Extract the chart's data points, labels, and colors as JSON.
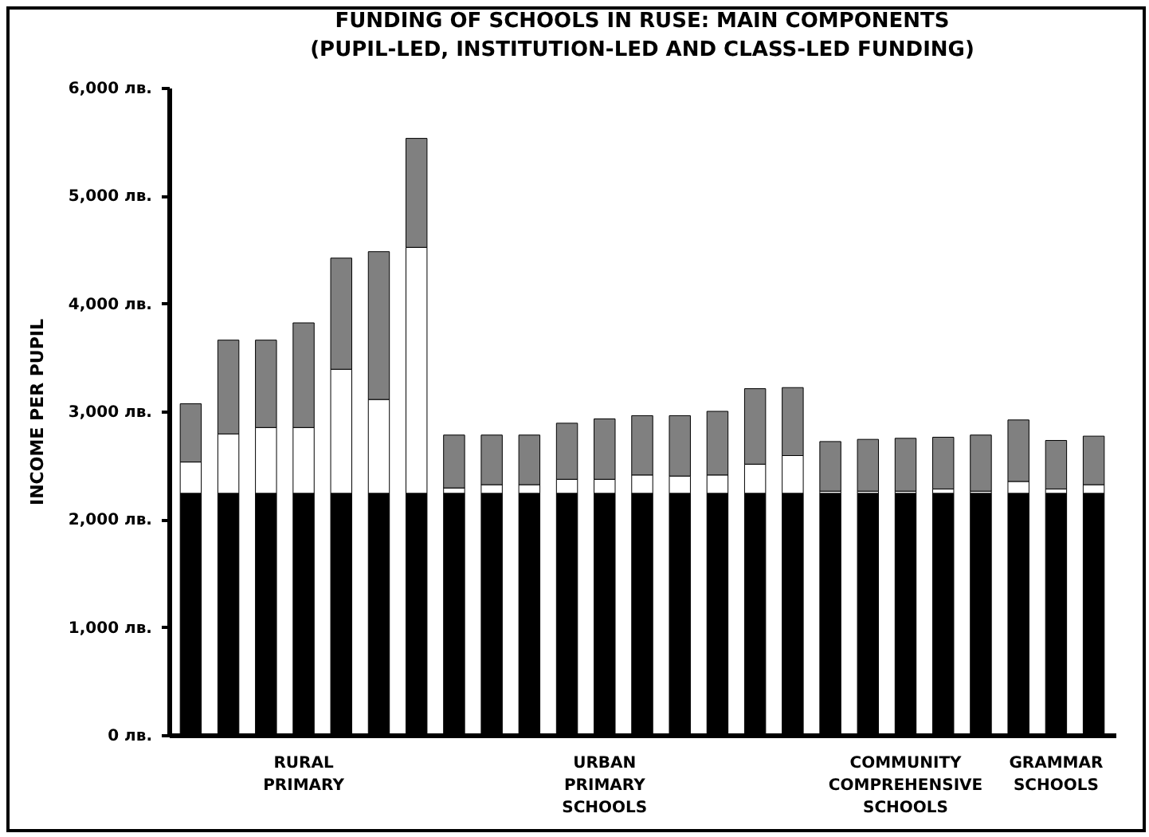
{
  "chart_data": {
    "type": "bar",
    "title": "FUNDING OF SCHOOLS IN RUSE: MAIN COMPONENTS\n(PUPIL-LED, INSTITUTION-LED AND CLASS-LED FUNDING)",
    "ylabel": "INCOME PER PUPIL",
    "categories": [
      null,
      null,
      null,
      "RURAL PRIMARY",
      null,
      null,
      null,
      null,
      null,
      null,
      null,
      "URBAN PRIMARY SCHOOLS",
      null,
      null,
      null,
      null,
      null,
      null,
      null,
      "COMMUNITY COMPREHENSIVE SCHOOLS",
      null,
      null,
      null,
      "GRAMMAR SCHOOLS",
      null
    ],
    "stacked": true,
    "series": [
      {
        "color": "#000000",
        "values": [
          2240,
          2240,
          2240,
          2240,
          2240,
          2240,
          2240,
          2240,
          2240,
          2240,
          2240,
          2240,
          2240,
          2240,
          2240,
          2240,
          2240,
          2240,
          2240,
          2240,
          2240,
          2240,
          2240,
          2240,
          2240
        ]
      },
      {
        "color": "#ffffff",
        "values": [
          290,
          550,
          610,
          610,
          1150,
          870,
          2280,
          50,
          80,
          80,
          130,
          130,
          170,
          160,
          170,
          270,
          350,
          20,
          20,
          20,
          40,
          20,
          110,
          40,
          80
        ]
      },
      {
        "color": "#808080",
        "values": [
          540,
          870,
          810,
          970,
          1030,
          1370,
          1010,
          490,
          460,
          460,
          520,
          560,
          550,
          560,
          590,
          700,
          630,
          460,
          480,
          490,
          480,
          520,
          570,
          450,
          450
        ]
      }
    ],
    "ylim": [
      0,
      6000
    ],
    "yticks": [
      {
        "value": 0,
        "label": "0 лв."
      },
      {
        "value": 1000,
        "label": "1,000 лв."
      },
      {
        "value": 2000,
        "label": "2,000 лв."
      },
      {
        "value": 3000,
        "label": "3,000 лв."
      },
      {
        "value": 4000,
        "label": "4,000 лв."
      },
      {
        "value": 5000,
        "label": "5,000 лв."
      },
      {
        "value": 6000,
        "label": "6,000 лв."
      }
    ],
    "grid": false,
    "legend": false
  }
}
